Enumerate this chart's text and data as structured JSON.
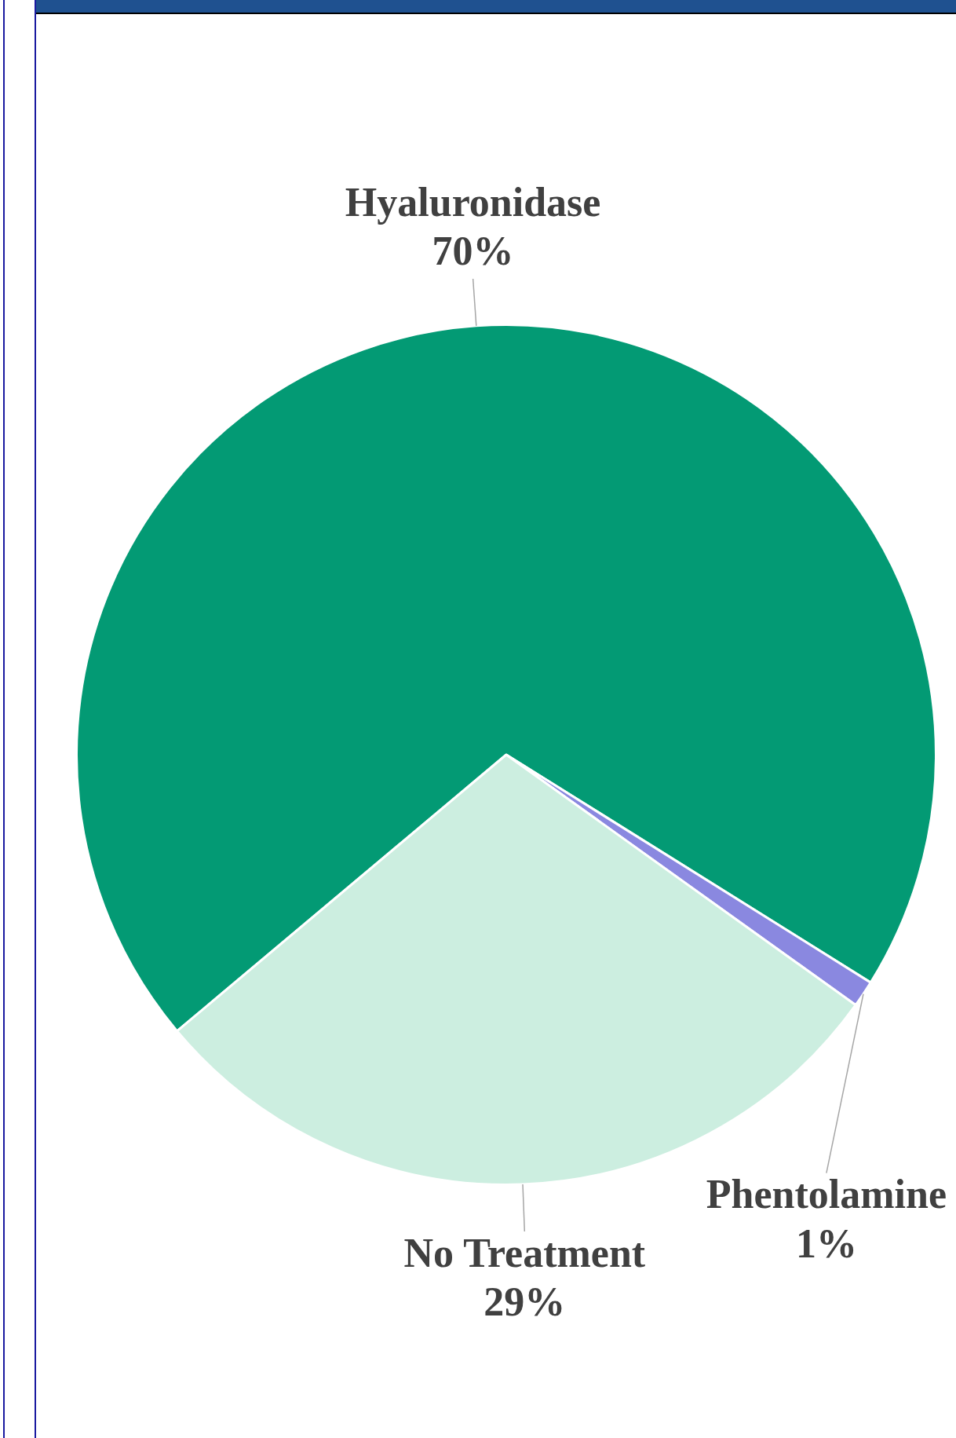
{
  "chart_data": {
    "type": "pie",
    "categories": [
      "Hyaluronidase",
      "Phentolamine",
      "No Treatment"
    ],
    "values": [
      70,
      1,
      29
    ],
    "colors": [
      "#039a74",
      "#8a88e0",
      "#cceee0"
    ],
    "value_labels": [
      "70%",
      "1%",
      "29%"
    ],
    "legend": false
  }
}
